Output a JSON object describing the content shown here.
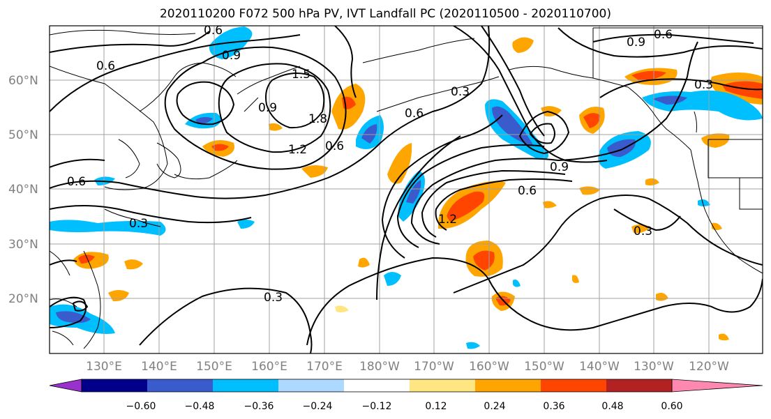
{
  "title": "2020110200 F072 500 hPa PV, IVT Landfall PC (2020110500 - 2020110700)",
  "map": {
    "lat_labels": [
      "60°N",
      "50°N",
      "40°N",
      "30°N",
      "20°N"
    ],
    "lon_labels": [
      "130°E",
      "140°E",
      "150°E",
      "160°E",
      "170°E",
      "180°W",
      "170°W",
      "160°W",
      "150°W",
      "140°W",
      "130°W",
      "120°W"
    ],
    "contour_labels": [
      "0.6",
      "0.9",
      "0.6",
      "1.5",
      "0.9",
      "1.8",
      "1.2",
      "0.6",
      "0.6",
      "0.3",
      "0.6",
      "0.9",
      "0.3",
      "0.6",
      "0.9",
      "0.6",
      "0.3",
      "0.3",
      "1.2",
      "0.3"
    ]
  },
  "colorbar": {
    "colors": [
      "#9932cc",
      "#00008b",
      "#3a5bcb",
      "#00bfff",
      "#add8ff",
      "#ffffff",
      "#ffe680",
      "#ffa500",
      "#ff4500",
      "#b22222",
      "#ff88b0"
    ],
    "tick_labels": [
      "−0.60",
      "−0.48",
      "−0.36",
      "−0.24",
      "−0.12",
      "0.12",
      "0.24",
      "0.36",
      "0.48",
      "0.60"
    ]
  }
}
